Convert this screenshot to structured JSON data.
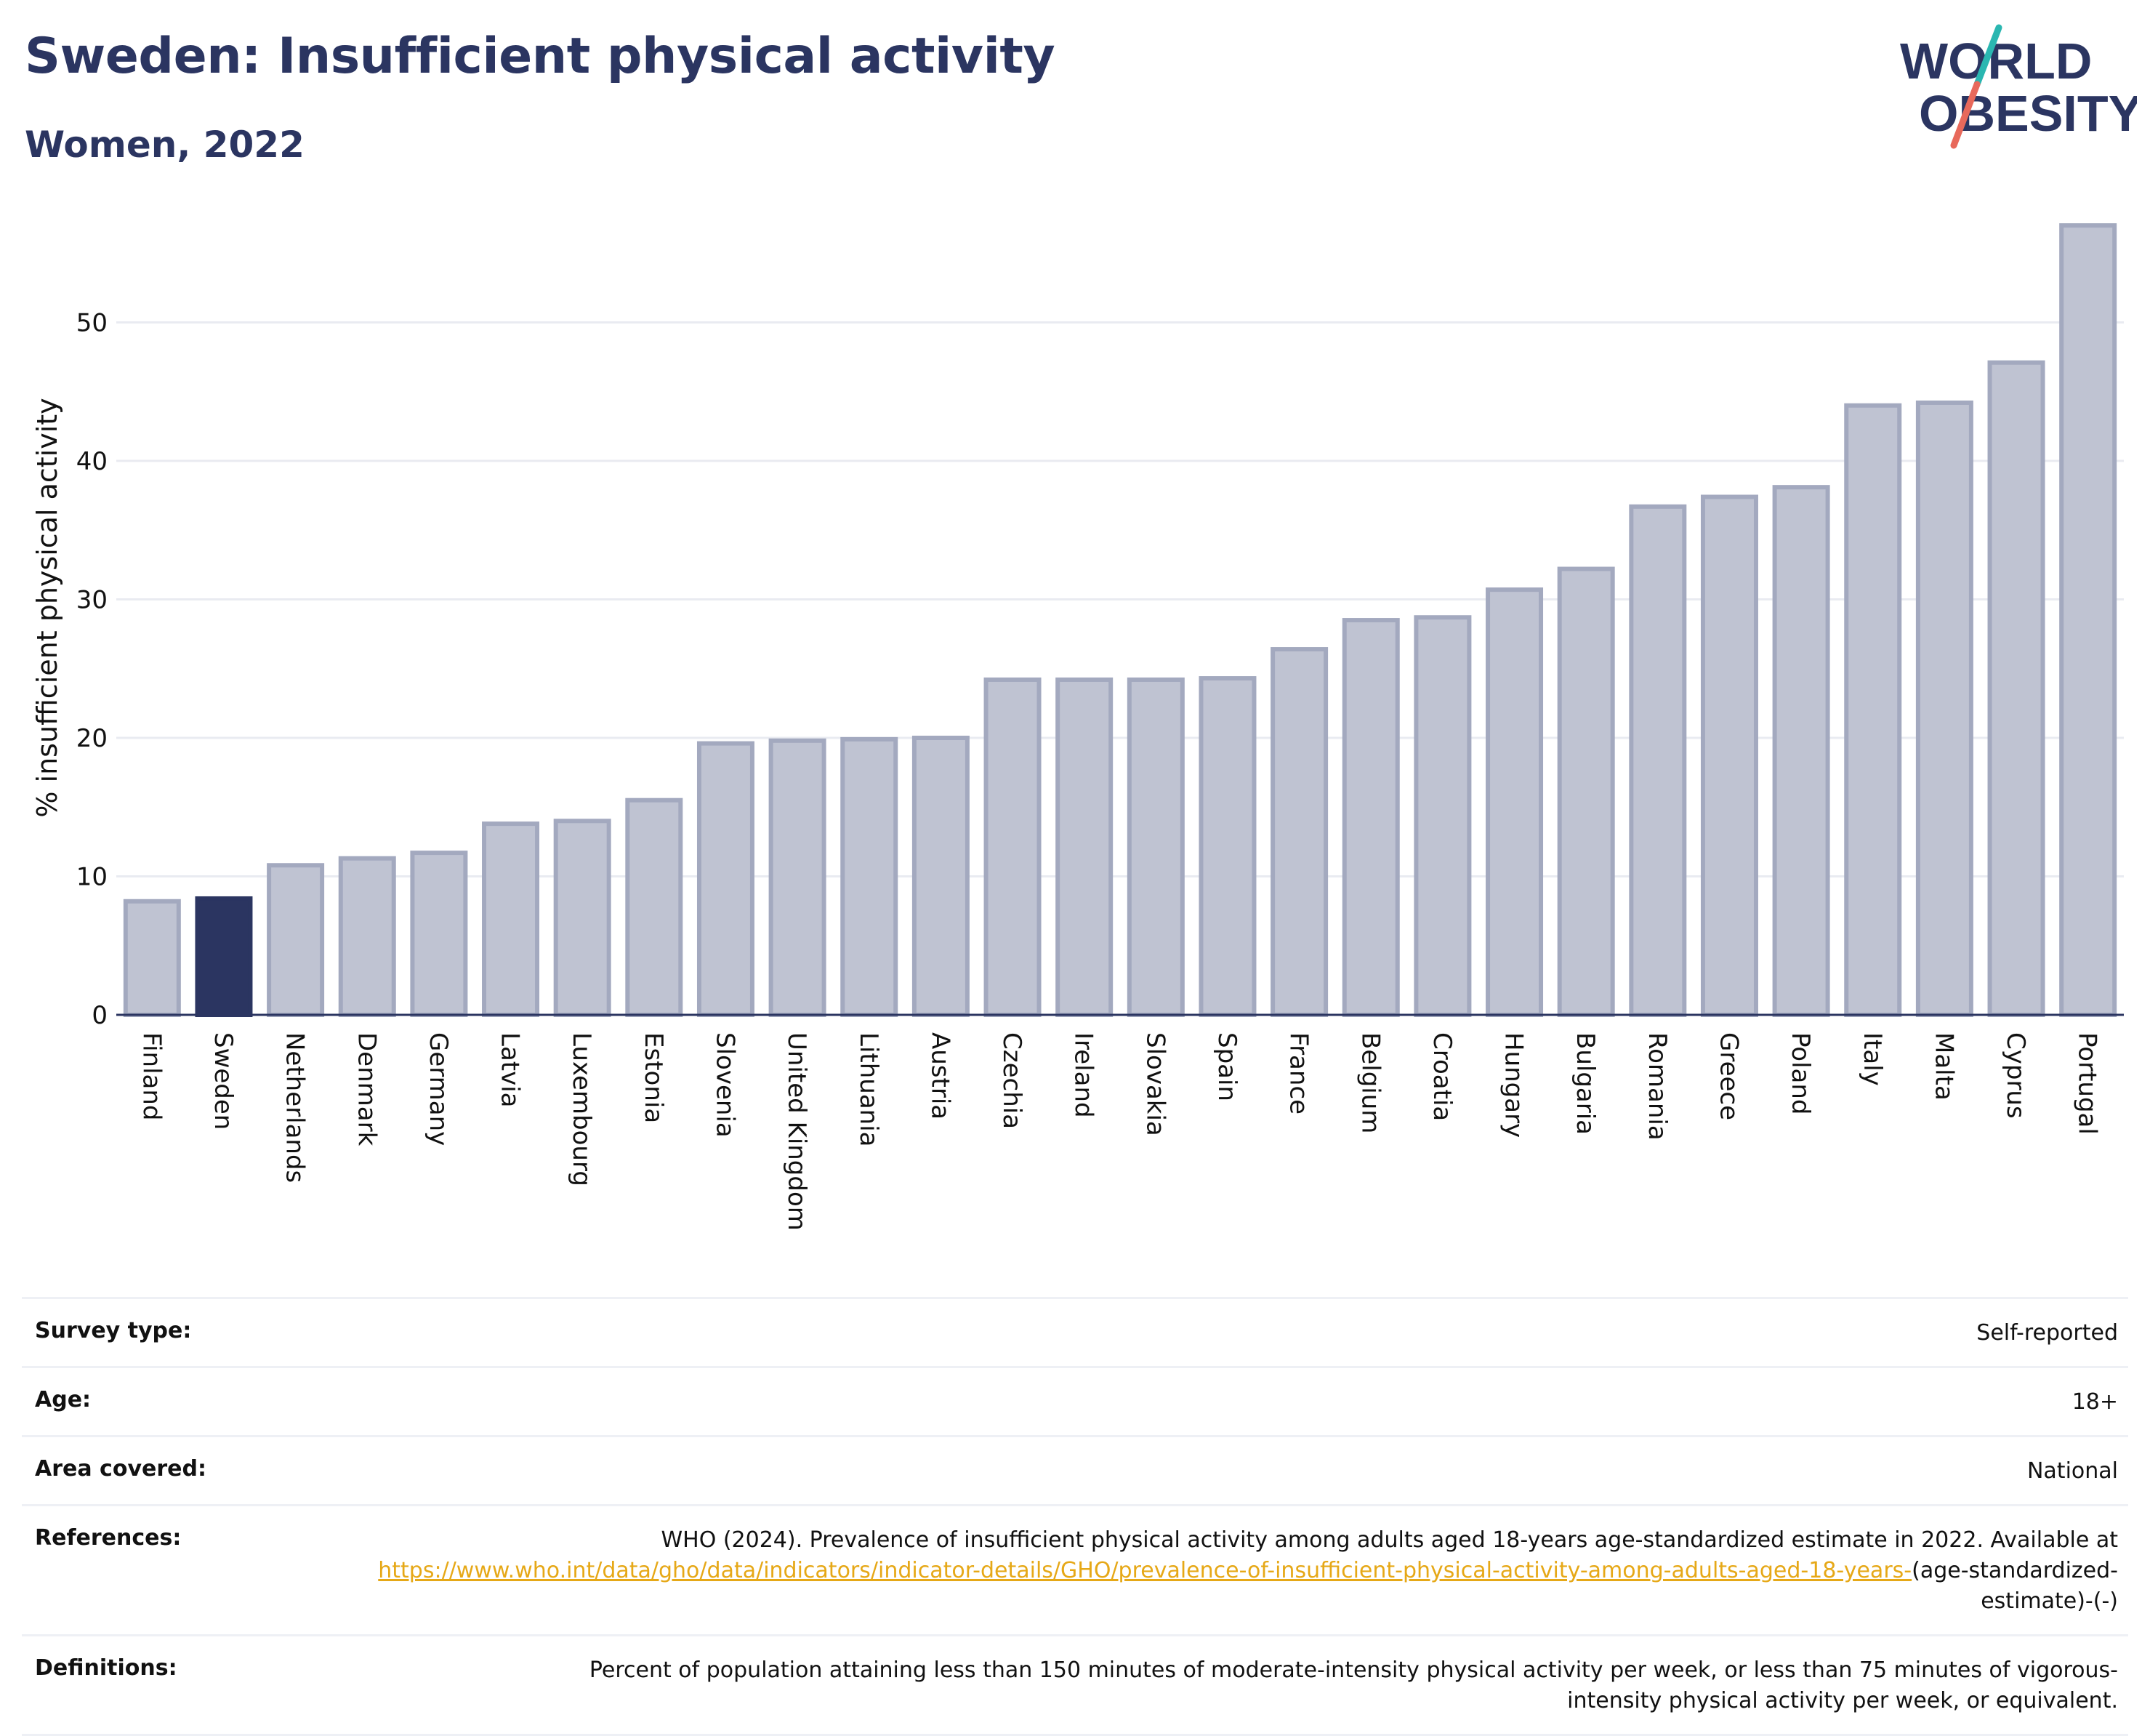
{
  "header": {
    "title": "Sweden: Insufficient physical activity",
    "subtitle": "Women, 2022"
  },
  "logo": {
    "line1": "WORLD",
    "line2": "OBESITY",
    "text_color": "#2b3561",
    "slash_colors": [
      "#2ab7b1",
      "#e8695b"
    ]
  },
  "colors": {
    "bar": "#bfc3d2",
    "bar_border": "#a3a9bf",
    "highlight": "#2b3561",
    "grid": "#e9ebf1",
    "axis": "#2b3561"
  },
  "chart_data": {
    "type": "bar",
    "title": "Sweden: Insufficient physical activity",
    "subtitle": "Women, 2022",
    "xlabel": "",
    "ylabel": "% insufficient physical activity",
    "ylim": [
      0,
      59
    ],
    "yticks": [
      0,
      10,
      20,
      30,
      40,
      50
    ],
    "grid": true,
    "highlight": "Sweden",
    "categories": [
      "Finland",
      "Sweden",
      "Netherlands",
      "Denmark",
      "Germany",
      "Latvia",
      "Luxembourg",
      "Estonia",
      "Slovenia",
      "United Kingdom",
      "Lithuania",
      "Austria",
      "Czechia",
      "Ireland",
      "Slovakia",
      "Spain",
      "France",
      "Belgium",
      "Croatia",
      "Hungary",
      "Bulgaria",
      "Romania",
      "Greece",
      "Poland",
      "Italy",
      "Malta",
      "Cyprus",
      "Portugal"
    ],
    "values": [
      8.2,
      8.4,
      10.8,
      11.3,
      11.7,
      13.8,
      14.0,
      15.5,
      19.6,
      19.8,
      19.9,
      20.0,
      24.2,
      24.2,
      24.2,
      24.3,
      26.4,
      28.5,
      28.7,
      30.7,
      32.2,
      36.7,
      37.4,
      38.1,
      44.0,
      44.2,
      47.1,
      57.0
    ]
  },
  "metadata": [
    {
      "label": "Survey type:",
      "value": "Self-reported"
    },
    {
      "label": "Age:",
      "value": "18+"
    },
    {
      "label": "Area covered:",
      "value": "National"
    },
    {
      "label": "References:",
      "value": "WHO (2024). Prevalence of insufficient physical activity among adults aged 18-years age-standardized estimate in 2022. Available at",
      "link": "https://www.who.int/data/gho/data/indicators/indicator-details/GHO/prevalence-of-insufficient-physical-activity-among-adults-aged-18-years-",
      "suffix": "(age-standardized-estimate)-(-)"
    },
    {
      "label": "Definitions:",
      "value": "Percent of population attaining less than 150 minutes of moderate-intensity physical activity per week, or less than 75 minutes of vigorous-intensity physical activity per week, or equivalent."
    }
  ]
}
